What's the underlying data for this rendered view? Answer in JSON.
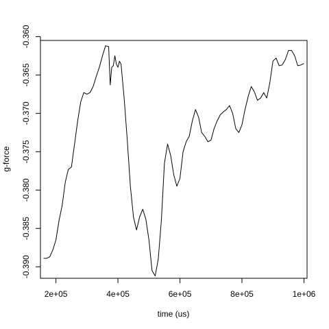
{
  "chart_data": {
    "type": "line",
    "title": "",
    "xlabel": "time (us)",
    "ylabel": "g-force",
    "xlim": [
      150000,
      1010000
    ],
    "ylim": [
      -0.3915,
      -0.3605
    ],
    "x_ticks": [
      200000,
      400000,
      600000,
      800000,
      1000000
    ],
    "x_tick_labels": [
      "2e+05",
      "4e+05",
      "6e+05",
      "8e+05",
      "1e+06"
    ],
    "y_ticks": [
      -0.39,
      -0.385,
      -0.38,
      -0.375,
      -0.37,
      -0.365,
      -0.36
    ],
    "y_tick_labels": [
      "-0.390",
      "-0.385",
      "-0.380",
      "-0.375",
      "-0.370",
      "-0.365",
      "-0.360"
    ],
    "grid": false,
    "series": [
      {
        "color": "#000000",
        "x": [
          160000,
          170000,
          180000,
          190000,
          200000,
          210000,
          220000,
          230000,
          240000,
          250000,
          260000,
          270000,
          280000,
          290000,
          300000,
          310000,
          320000,
          330000,
          340000,
          350000,
          360000,
          370000,
          375000,
          380000,
          385000,
          390000,
          395000,
          400000,
          405000,
          410000,
          420000,
          430000,
          440000,
          450000,
          460000,
          470000,
          480000,
          490000,
          500000,
          510000,
          520000,
          530000,
          540000,
          550000,
          560000,
          570000,
          580000,
          590000,
          600000,
          610000,
          620000,
          630000,
          640000,
          650000,
          660000,
          670000,
          680000,
          690000,
          700000,
          710000,
          720000,
          730000,
          740000,
          750000,
          760000,
          770000,
          780000,
          790000,
          800000,
          810000,
          820000,
          830000,
          840000,
          850000,
          860000,
          870000,
          880000,
          890000,
          900000,
          910000,
          920000,
          930000,
          940000,
          950000,
          960000,
          970000,
          980000,
          990000,
          1000000
        ],
        "y": [
          -0.3889,
          -0.3889,
          -0.3887,
          -0.3878,
          -0.3865,
          -0.384,
          -0.382,
          -0.379,
          -0.3773,
          -0.377,
          -0.374,
          -0.371,
          -0.3685,
          -0.3673,
          -0.3675,
          -0.3673,
          -0.3665,
          -0.3652,
          -0.364,
          -0.3625,
          -0.3612,
          -0.3613,
          -0.3663,
          -0.364,
          -0.3638,
          -0.3625,
          -0.3636,
          -0.364,
          -0.3632,
          -0.3636,
          -0.368,
          -0.3735,
          -0.3795,
          -0.3835,
          -0.3852,
          -0.3835,
          -0.3825,
          -0.3838,
          -0.3865,
          -0.3905,
          -0.3912,
          -0.389,
          -0.384,
          -0.3765,
          -0.374,
          -0.3755,
          -0.378,
          -0.3795,
          -0.3785,
          -0.375,
          -0.3737,
          -0.373,
          -0.371,
          -0.3695,
          -0.3705,
          -0.3725,
          -0.373,
          -0.3737,
          -0.3735,
          -0.372,
          -0.371,
          -0.3702,
          -0.3698,
          -0.3695,
          -0.369,
          -0.37,
          -0.372,
          -0.3725,
          -0.3715,
          -0.3695,
          -0.3678,
          -0.3665,
          -0.3672,
          -0.3683,
          -0.368,
          -0.3673,
          -0.368,
          -0.366,
          -0.3632,
          -0.3628,
          -0.3638,
          -0.3637,
          -0.363,
          -0.3618,
          -0.3618,
          -0.3625,
          -0.3638,
          -0.3637,
          -0.3635
        ]
      }
    ]
  }
}
